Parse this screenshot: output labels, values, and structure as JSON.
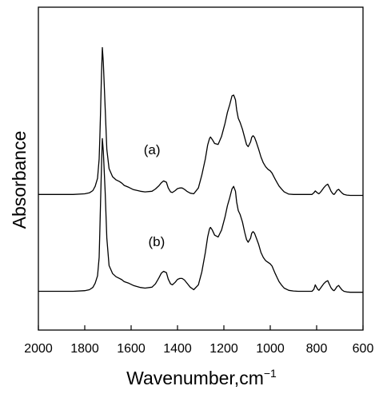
{
  "chart_data": {
    "type": "line",
    "title": "",
    "xlabel": "Wavenumber,cm",
    "xlabel_sup": "−1",
    "ylabel": "Absorbance",
    "xlim": [
      2000,
      600
    ],
    "x_reversed": true,
    "xticks": [
      2000,
      1800,
      1600,
      1400,
      1200,
      1000,
      800,
      600
    ],
    "yticks": [],
    "ylim": [
      0,
      1
    ],
    "grid": false,
    "annotations": [
      {
        "text": "(a)",
        "series": "a",
        "x": 1510,
        "y": 0.545
      },
      {
        "text": "(b)",
        "series": "b",
        "x": 1490,
        "y": 0.26
      }
    ],
    "series": [
      {
        "name": "",
        "id": "a",
        "x": [
          2000,
          1900,
          1850,
          1800,
          1780,
          1765,
          1755,
          1745,
          1738,
          1735,
          1732,
          1728,
          1724,
          1720,
          1712,
          1705,
          1695,
          1680,
          1665,
          1650,
          1640,
          1630,
          1610,
          1590,
          1560,
          1540,
          1510,
          1495,
          1480,
          1470,
          1460,
          1448,
          1440,
          1430,
          1422,
          1410,
          1400,
          1390,
          1380,
          1370,
          1360,
          1345,
          1330,
          1310,
          1295,
          1280,
          1270,
          1262,
          1258,
          1250,
          1240,
          1225,
          1210,
          1195,
          1185,
          1175,
          1165,
          1158,
          1150,
          1145,
          1138,
          1130,
          1120,
          1110,
          1102,
          1095,
          1085,
          1080,
          1074,
          1068,
          1060,
          1050,
          1040,
          1030,
          1020,
          1010,
          1000,
          992,
          985,
          978,
          970,
          962,
          950,
          940,
          920,
          900,
          880,
          860,
          840,
          820,
          812,
          806,
          800,
          795,
          790,
          780,
          770,
          760,
          752,
          745,
          738,
          730,
          725,
          720,
          712,
          705,
          698,
          690,
          682,
          670,
          655,
          640,
          620,
          600
        ],
        "y": [
          0.42,
          0.42,
          0.42,
          0.422,
          0.425,
          0.432,
          0.445,
          0.47,
          0.53,
          0.59,
          0.67,
          0.79,
          0.875,
          0.83,
          0.69,
          0.56,
          0.5,
          0.475,
          0.465,
          0.46,
          0.455,
          0.448,
          0.442,
          0.435,
          0.43,
          0.428,
          0.43,
          0.437,
          0.447,
          0.456,
          0.462,
          0.458,
          0.44,
          0.428,
          0.426,
          0.432,
          0.438,
          0.44,
          0.44,
          0.436,
          0.43,
          0.424,
          0.422,
          0.44,
          0.48,
          0.53,
          0.573,
          0.593,
          0.598,
          0.59,
          0.578,
          0.575,
          0.6,
          0.64,
          0.674,
          0.698,
          0.725,
          0.728,
          0.713,
          0.682,
          0.656,
          0.643,
          0.622,
          0.595,
          0.574,
          0.568,
          0.583,
          0.597,
          0.602,
          0.597,
          0.582,
          0.56,
          0.536,
          0.518,
          0.506,
          0.498,
          0.493,
          0.486,
          0.476,
          0.466,
          0.456,
          0.446,
          0.436,
          0.428,
          0.421,
          0.42,
          0.42,
          0.42,
          0.42,
          0.42,
          0.425,
          0.431,
          0.427,
          0.424,
          0.422,
          0.43,
          0.44,
          0.448,
          0.452,
          0.442,
          0.43,
          0.422,
          0.42,
          0.424,
          0.433,
          0.436,
          0.43,
          0.424,
          0.42,
          0.418,
          0.417,
          0.417,
          0.417,
          0.417
        ]
      },
      {
        "name": "",
        "id": "b",
        "x": [
          2000,
          1900,
          1850,
          1800,
          1780,
          1765,
          1755,
          1745,
          1738,
          1735,
          1732,
          1728,
          1724,
          1720,
          1712,
          1705,
          1695,
          1680,
          1665,
          1650,
          1640,
          1630,
          1610,
          1590,
          1560,
          1540,
          1510,
          1495,
          1480,
          1470,
          1460,
          1448,
          1440,
          1430,
          1422,
          1410,
          1400,
          1390,
          1380,
          1370,
          1360,
          1345,
          1330,
          1310,
          1295,
          1280,
          1270,
          1262,
          1258,
          1250,
          1240,
          1225,
          1210,
          1195,
          1185,
          1175,
          1165,
          1158,
          1150,
          1145,
          1138,
          1130,
          1120,
          1110,
          1102,
          1095,
          1085,
          1080,
          1074,
          1068,
          1060,
          1050,
          1040,
          1030,
          1020,
          1010,
          1000,
          992,
          985,
          978,
          970,
          962,
          950,
          940,
          920,
          900,
          880,
          860,
          840,
          820,
          812,
          806,
          800,
          795,
          790,
          780,
          770,
          760,
          752,
          745,
          738,
          730,
          725,
          720,
          712,
          705,
          698,
          690,
          682,
          670,
          655,
          640,
          620,
          600
        ],
        "y": [
          0.12,
          0.12,
          0.12,
          0.122,
          0.125,
          0.132,
          0.145,
          0.168,
          0.225,
          0.3,
          0.39,
          0.505,
          0.593,
          0.555,
          0.43,
          0.285,
          0.2,
          0.175,
          0.165,
          0.16,
          0.156,
          0.15,
          0.145,
          0.138,
          0.132,
          0.13,
          0.133,
          0.143,
          0.162,
          0.176,
          0.182,
          0.178,
          0.158,
          0.143,
          0.14,
          0.148,
          0.157,
          0.16,
          0.16,
          0.155,
          0.146,
          0.133,
          0.125,
          0.14,
          0.18,
          0.24,
          0.288,
          0.313,
          0.318,
          0.31,
          0.294,
          0.288,
          0.31,
          0.35,
          0.385,
          0.41,
          0.437,
          0.445,
          0.43,
          0.396,
          0.37,
          0.358,
          0.335,
          0.302,
          0.28,
          0.272,
          0.285,
          0.3,
          0.305,
          0.3,
          0.285,
          0.265,
          0.24,
          0.225,
          0.215,
          0.21,
          0.205,
          0.198,
          0.186,
          0.174,
          0.162,
          0.15,
          0.138,
          0.13,
          0.123,
          0.121,
          0.12,
          0.12,
          0.12,
          0.12,
          0.126,
          0.14,
          0.132,
          0.126,
          0.123,
          0.133,
          0.143,
          0.15,
          0.153,
          0.142,
          0.131,
          0.124,
          0.122,
          0.126,
          0.135,
          0.138,
          0.131,
          0.124,
          0.12,
          0.118,
          0.117,
          0.117,
          0.117,
          0.117
        ]
      }
    ]
  }
}
